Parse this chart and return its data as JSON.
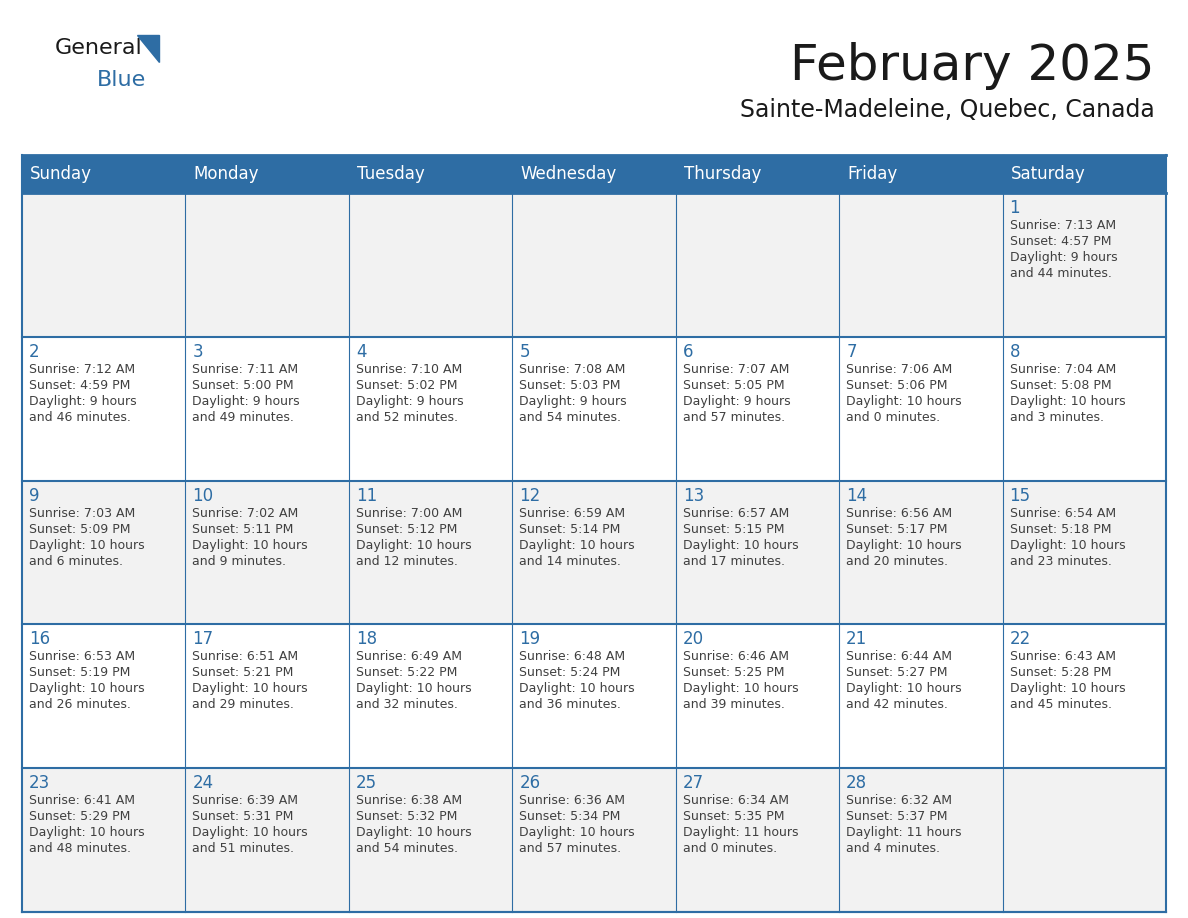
{
  "title": "February 2025",
  "subtitle": "Sainte-Madeleine, Quebec, Canada",
  "header_bg": "#2E6DA4",
  "header_text": "#FFFFFF",
  "cell_bg_odd": "#F2F2F2",
  "cell_bg_even": "#FFFFFF",
  "day_number_color": "#2E6DA4",
  "info_text_color": "#404040",
  "line_color": "#2E6DA4",
  "days_of_week": [
    "Sunday",
    "Monday",
    "Tuesday",
    "Wednesday",
    "Thursday",
    "Friday",
    "Saturday"
  ],
  "logo_general_color": "#1a1a1a",
  "logo_blue_color": "#2E6DA4",
  "title_fontsize": 36,
  "subtitle_fontsize": 17,
  "header_fontsize": 12,
  "day_num_fontsize": 12,
  "cell_text_fontsize": 9,
  "calendar_data": [
    [
      null,
      null,
      null,
      null,
      null,
      null,
      {
        "day": 1,
        "sunrise": "7:13 AM",
        "sunset": "4:57 PM",
        "daylight_line1": "9 hours",
        "daylight_line2": "and 44 minutes."
      }
    ],
    [
      {
        "day": 2,
        "sunrise": "7:12 AM",
        "sunset": "4:59 PM",
        "daylight_line1": "9 hours",
        "daylight_line2": "and 46 minutes."
      },
      {
        "day": 3,
        "sunrise": "7:11 AM",
        "sunset": "5:00 PM",
        "daylight_line1": "9 hours",
        "daylight_line2": "and 49 minutes."
      },
      {
        "day": 4,
        "sunrise": "7:10 AM",
        "sunset": "5:02 PM",
        "daylight_line1": "9 hours",
        "daylight_line2": "and 52 minutes."
      },
      {
        "day": 5,
        "sunrise": "7:08 AM",
        "sunset": "5:03 PM",
        "daylight_line1": "9 hours",
        "daylight_line2": "and 54 minutes."
      },
      {
        "day": 6,
        "sunrise": "7:07 AM",
        "sunset": "5:05 PM",
        "daylight_line1": "9 hours",
        "daylight_line2": "and 57 minutes."
      },
      {
        "day": 7,
        "sunrise": "7:06 AM",
        "sunset": "5:06 PM",
        "daylight_line1": "10 hours",
        "daylight_line2": "and 0 minutes."
      },
      {
        "day": 8,
        "sunrise": "7:04 AM",
        "sunset": "5:08 PM",
        "daylight_line1": "10 hours",
        "daylight_line2": "and 3 minutes."
      }
    ],
    [
      {
        "day": 9,
        "sunrise": "7:03 AM",
        "sunset": "5:09 PM",
        "daylight_line1": "10 hours",
        "daylight_line2": "and 6 minutes."
      },
      {
        "day": 10,
        "sunrise": "7:02 AM",
        "sunset": "5:11 PM",
        "daylight_line1": "10 hours",
        "daylight_line2": "and 9 minutes."
      },
      {
        "day": 11,
        "sunrise": "7:00 AM",
        "sunset": "5:12 PM",
        "daylight_line1": "10 hours",
        "daylight_line2": "and 12 minutes."
      },
      {
        "day": 12,
        "sunrise": "6:59 AM",
        "sunset": "5:14 PM",
        "daylight_line1": "10 hours",
        "daylight_line2": "and 14 minutes."
      },
      {
        "day": 13,
        "sunrise": "6:57 AM",
        "sunset": "5:15 PM",
        "daylight_line1": "10 hours",
        "daylight_line2": "and 17 minutes."
      },
      {
        "day": 14,
        "sunrise": "6:56 AM",
        "sunset": "5:17 PM",
        "daylight_line1": "10 hours",
        "daylight_line2": "and 20 minutes."
      },
      {
        "day": 15,
        "sunrise": "6:54 AM",
        "sunset": "5:18 PM",
        "daylight_line1": "10 hours",
        "daylight_line2": "and 23 minutes."
      }
    ],
    [
      {
        "day": 16,
        "sunrise": "6:53 AM",
        "sunset": "5:19 PM",
        "daylight_line1": "10 hours",
        "daylight_line2": "and 26 minutes."
      },
      {
        "day": 17,
        "sunrise": "6:51 AM",
        "sunset": "5:21 PM",
        "daylight_line1": "10 hours",
        "daylight_line2": "and 29 minutes."
      },
      {
        "day": 18,
        "sunrise": "6:49 AM",
        "sunset": "5:22 PM",
        "daylight_line1": "10 hours",
        "daylight_line2": "and 32 minutes."
      },
      {
        "day": 19,
        "sunrise": "6:48 AM",
        "sunset": "5:24 PM",
        "daylight_line1": "10 hours",
        "daylight_line2": "and 36 minutes."
      },
      {
        "day": 20,
        "sunrise": "6:46 AM",
        "sunset": "5:25 PM",
        "daylight_line1": "10 hours",
        "daylight_line2": "and 39 minutes."
      },
      {
        "day": 21,
        "sunrise": "6:44 AM",
        "sunset": "5:27 PM",
        "daylight_line1": "10 hours",
        "daylight_line2": "and 42 minutes."
      },
      {
        "day": 22,
        "sunrise": "6:43 AM",
        "sunset": "5:28 PM",
        "daylight_line1": "10 hours",
        "daylight_line2": "and 45 minutes."
      }
    ],
    [
      {
        "day": 23,
        "sunrise": "6:41 AM",
        "sunset": "5:29 PM",
        "daylight_line1": "10 hours",
        "daylight_line2": "and 48 minutes."
      },
      {
        "day": 24,
        "sunrise": "6:39 AM",
        "sunset": "5:31 PM",
        "daylight_line1": "10 hours",
        "daylight_line2": "and 51 minutes."
      },
      {
        "day": 25,
        "sunrise": "6:38 AM",
        "sunset": "5:32 PM",
        "daylight_line1": "10 hours",
        "daylight_line2": "and 54 minutes."
      },
      {
        "day": 26,
        "sunrise": "6:36 AM",
        "sunset": "5:34 PM",
        "daylight_line1": "10 hours",
        "daylight_line2": "and 57 minutes."
      },
      {
        "day": 27,
        "sunrise": "6:34 AM",
        "sunset": "5:35 PM",
        "daylight_line1": "11 hours",
        "daylight_line2": "and 0 minutes."
      },
      {
        "day": 28,
        "sunrise": "6:32 AM",
        "sunset": "5:37 PM",
        "daylight_line1": "11 hours",
        "daylight_line2": "and 4 minutes."
      },
      null
    ]
  ]
}
